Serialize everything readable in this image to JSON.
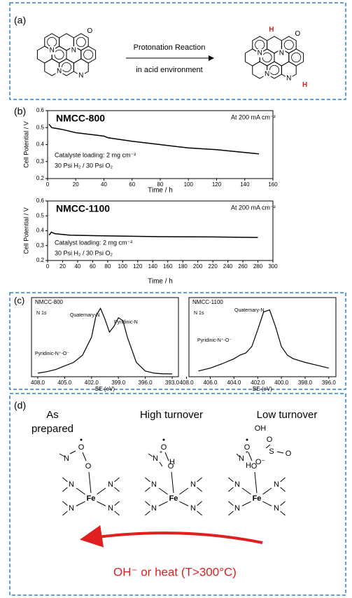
{
  "panels": {
    "a": {
      "label": "(a)",
      "arrow_text": [
        "Protonation Reaction",
        "in acid environment"
      ],
      "left_atoms": [
        "N",
        "N",
        "N",
        "N",
        "O"
      ],
      "right_atoms": [
        "N",
        "N",
        "N",
        "N",
        "O",
        "H",
        "H"
      ]
    },
    "b": {
      "label": "(b)"
    },
    "c": {
      "label": "(c)"
    },
    "d": {
      "label": "(d)",
      "headings": [
        "As",
        "prepared",
        "High turnover",
        "Low turnover"
      ],
      "groups": [
        [
          "N"
        ],
        [
          "N",
          "+",
          "H"
        ],
        [
          "N",
          "+",
          "H",
          "O",
          "S",
          "O",
          "OH",
          "O⁻"
        ]
      ],
      "complexes": [
        {
          "metal": "Fe",
          "ligands": [
            "N",
            "N",
            "N",
            "N"
          ],
          "oxygens": [
            "O",
            "O"
          ]
        },
        {
          "metal": "Fe",
          "ligands": [
            "N",
            "N",
            "N",
            "N"
          ],
          "oxygens": [
            "O",
            "O"
          ]
        },
        {
          "metal": "Fe",
          "ligands": [
            "N",
            "N",
            "N",
            "N"
          ],
          "oxygens": [
            "O",
            "O"
          ]
        }
      ],
      "arrow_text": "OH⁻ or heat (T>300°C)"
    }
  },
  "chart_data": [
    {
      "type": "line",
      "title": "NMCC-800",
      "annotations": [
        "At 200 mA cm⁻²",
        "Catalyste loading: 2 mg cm⁻²",
        "30 Psi H₂ / 30 Psi O₂"
      ],
      "x_label": "Time / h",
      "y_label": "Cell Potential / V",
      "x": [
        1,
        3,
        10,
        20,
        30,
        40,
        43,
        60,
        80,
        100,
        120,
        150
      ],
      "series": [
        {
          "name": "NMCC-800",
          "color": "#000000",
          "values": [
            0.52,
            0.5,
            0.49,
            0.47,
            0.46,
            0.45,
            0.44,
            0.42,
            0.4,
            0.38,
            0.37,
            0.345
          ]
        }
      ],
      "xlim": [
        0,
        160
      ],
      "xticks": [
        0,
        20,
        40,
        60,
        80,
        100,
        120,
        140,
        160
      ],
      "ylim": [
        0.2,
        0.6
      ],
      "yticks": [
        0.2,
        0.3,
        0.4,
        0.5,
        0.6
      ]
    },
    {
      "type": "line",
      "title": "NMCC-1100",
      "annotations": [
        "At 200 mA cm⁻²",
        "Catalyst loading: 2 mg cm⁻²",
        "30 Psi H₂ / 30 Psi O₂"
      ],
      "x_label": "Time / h",
      "y_label": "Cell Potential / V",
      "x": [
        2,
        5,
        10,
        30,
        80,
        150,
        220,
        280
      ],
      "series": [
        {
          "name": "NMCC-1100",
          "color": "#000000",
          "values": [
            0.37,
            0.39,
            0.38,
            0.37,
            0.365,
            0.36,
            0.358,
            0.355
          ]
        }
      ],
      "xlim": [
        0,
        300
      ],
      "xticks": [
        0,
        20,
        40,
        60,
        80,
        100,
        120,
        140,
        160,
        180,
        200,
        220,
        240,
        260,
        280,
        300
      ],
      "ylim": [
        0.2,
        0.6
      ],
      "yticks": [
        0.2,
        0.3,
        0.4,
        0.5,
        0.6
      ]
    },
    {
      "type": "line",
      "title": "NMCC-800",
      "annotations": [
        "N 1s",
        "Quaternary-N",
        "Pyridinic-N",
        "Pyridinic-N⁺-O⁻"
      ],
      "x_label": "BE (eV)",
      "x": [
        408,
        407,
        406,
        405,
        404,
        403,
        402,
        401.5,
        401,
        400.5,
        400,
        399.5,
        399,
        398.5,
        398,
        397,
        396,
        395,
        394,
        393
      ],
      "series": [
        {
          "name": "N 1s",
          "color": "#000000",
          "values": [
            0.05,
            0.07,
            0.1,
            0.15,
            0.2,
            0.3,
            0.55,
            0.85,
            0.95,
            0.8,
            0.62,
            0.7,
            0.82,
            0.78,
            0.55,
            0.2,
            0.08,
            0.05,
            0.04,
            0.04
          ]
        }
      ],
      "xlim": [
        408.7,
        392.3
      ],
      "xticks": [
        {
          "value": 408,
          "label": "408.0"
        },
        {
          "value": 405,
          "label": "405.0"
        },
        {
          "value": 402,
          "label": "402.0"
        },
        {
          "value": 399,
          "label": "399.0"
        },
        {
          "value": 396,
          "label": "396.0"
        },
        {
          "value": 393,
          "label": "393.0"
        }
      ],
      "ylim": [
        0,
        1.1
      ]
    },
    {
      "type": "line",
      "title": "NMCC-1100",
      "annotations": [
        "N 1s",
        "Quaternary-N",
        "Pyridinic-N⁺-O⁻"
      ],
      "x_label": "BE (eV)",
      "x": [
        407,
        406,
        405,
        404,
        403.5,
        403,
        402.5,
        402,
        401.5,
        401,
        400.5,
        400,
        399.5,
        399,
        398,
        397,
        396
      ],
      "series": [
        {
          "name": "N 1s",
          "color": "#000000",
          "values": [
            0.08,
            0.12,
            0.18,
            0.25,
            0.3,
            0.33,
            0.42,
            0.65,
            0.9,
            0.93,
            0.7,
            0.42,
            0.3,
            0.25,
            0.2,
            0.16,
            0.12
          ]
        }
      ],
      "xlim": [
        407.8,
        395.4
      ],
      "xticks": [
        {
          "value": 408,
          "label": "408.0"
        },
        {
          "value": 406,
          "label": "406.0"
        },
        {
          "value": 404,
          "label": "404.0"
        },
        {
          "value": 402,
          "label": "402.0"
        },
        {
          "value": 400,
          "label": "400.0"
        },
        {
          "value": 398,
          "label": "398.0"
        },
        {
          "value": 396,
          "label": "396.0"
        }
      ],
      "ylim": [
        0,
        1.1
      ]
    }
  ]
}
